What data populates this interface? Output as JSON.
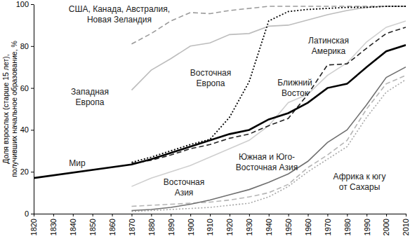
{
  "chart_data": {
    "type": "line",
    "y_label": "Доля взрослых (старше 15 лет), получивших начальное образование, %",
    "x": [
      1820,
      1870,
      1880,
      1890,
      1900,
      1910,
      1920,
      1930,
      1940,
      1950,
      1960,
      1970,
      1980,
      1990,
      2000,
      2010
    ],
    "xlim": [
      1820,
      2010
    ],
    "xticks": [
      1820,
      1830,
      1840,
      1850,
      1860,
      1870,
      1880,
      1890,
      1900,
      1910,
      1920,
      1930,
      1940,
      1950,
      1960,
      1970,
      1980,
      1990,
      2000,
      2010
    ],
    "ylim": [
      0,
      100
    ],
    "yticks": [
      0,
      20,
      40,
      60,
      80,
      100
    ],
    "grid": false,
    "series": [
      {
        "name": "Мир",
        "color": "#000000",
        "line_style": "solid",
        "values": [
          17,
          23.5,
          26,
          29,
          32,
          35,
          38,
          40,
          45,
          48,
          53,
          60,
          62,
          70,
          77.5,
          80.5
        ]
      },
      {
        "name": "США, Канада, Австралия, Новая Зеландия",
        "color": "#9a9a9a",
        "line_style": "dashed",
        "values": [
          null,
          81,
          86,
          92,
          96,
          95.5,
          97,
          98,
          99,
          99,
          99,
          99,
          99,
          99,
          99,
          99
        ]
      },
      {
        "name": "Западная Европа",
        "color": "#bdbdbd",
        "line_style": "solid",
        "values": [
          null,
          59,
          68.5,
          74,
          80,
          81.5,
          85.5,
          86,
          89.5,
          90,
          92.5,
          95,
          97,
          98.5,
          99,
          99
        ]
      },
      {
        "name": "Восточная Европа",
        "color": "#000000",
        "line_style": "dotted",
        "values": [
          null,
          24.5,
          27,
          30,
          33,
          35.5,
          46,
          63,
          92,
          96.5,
          97.5,
          98,
          98.5,
          98.5,
          99,
          99
        ]
      },
      {
        "name": "Латинская Америка",
        "color": "#cfcfcf",
        "line_style": "solid",
        "values": [
          null,
          13,
          17,
          20,
          23,
          27,
          31,
          35,
          42,
          53,
          57,
          66,
          72,
          82,
          89,
          92
        ]
      },
      {
        "name": "Ближний Восток",
        "color": "#222222",
        "line_style": "dashed",
        "values": [
          null,
          24,
          25.5,
          28,
          31,
          33,
          36,
          38,
          42,
          45.5,
          57,
          71,
          71.5,
          79,
          86,
          89
        ]
      },
      {
        "name": "Южная и Юго-Восточная Азия",
        "color": "#707070",
        "line_style": "solid",
        "values": [
          null,
          1.5,
          2,
          3,
          4.5,
          6.5,
          9,
          11.5,
          15,
          19,
          25,
          34,
          40,
          52,
          65,
          70
        ]
      },
      {
        "name": "Восточная Азия",
        "color": "#b5b5b5",
        "line_style": "dashed",
        "values": [
          null,
          3.5,
          4,
          4.5,
          5,
          5.5,
          6.5,
          8,
          10,
          14,
          22,
          28,
          35,
          50,
          62,
          66
        ]
      },
      {
        "name": "Африка к югу от Сахары",
        "color": "#a8a8a8",
        "line_style": "dotted",
        "values": [
          null,
          1,
          1.5,
          2,
          2.5,
          3,
          4,
          5,
          8,
          13,
          20,
          26,
          32,
          46,
          58,
          64
        ]
      }
    ]
  }
}
